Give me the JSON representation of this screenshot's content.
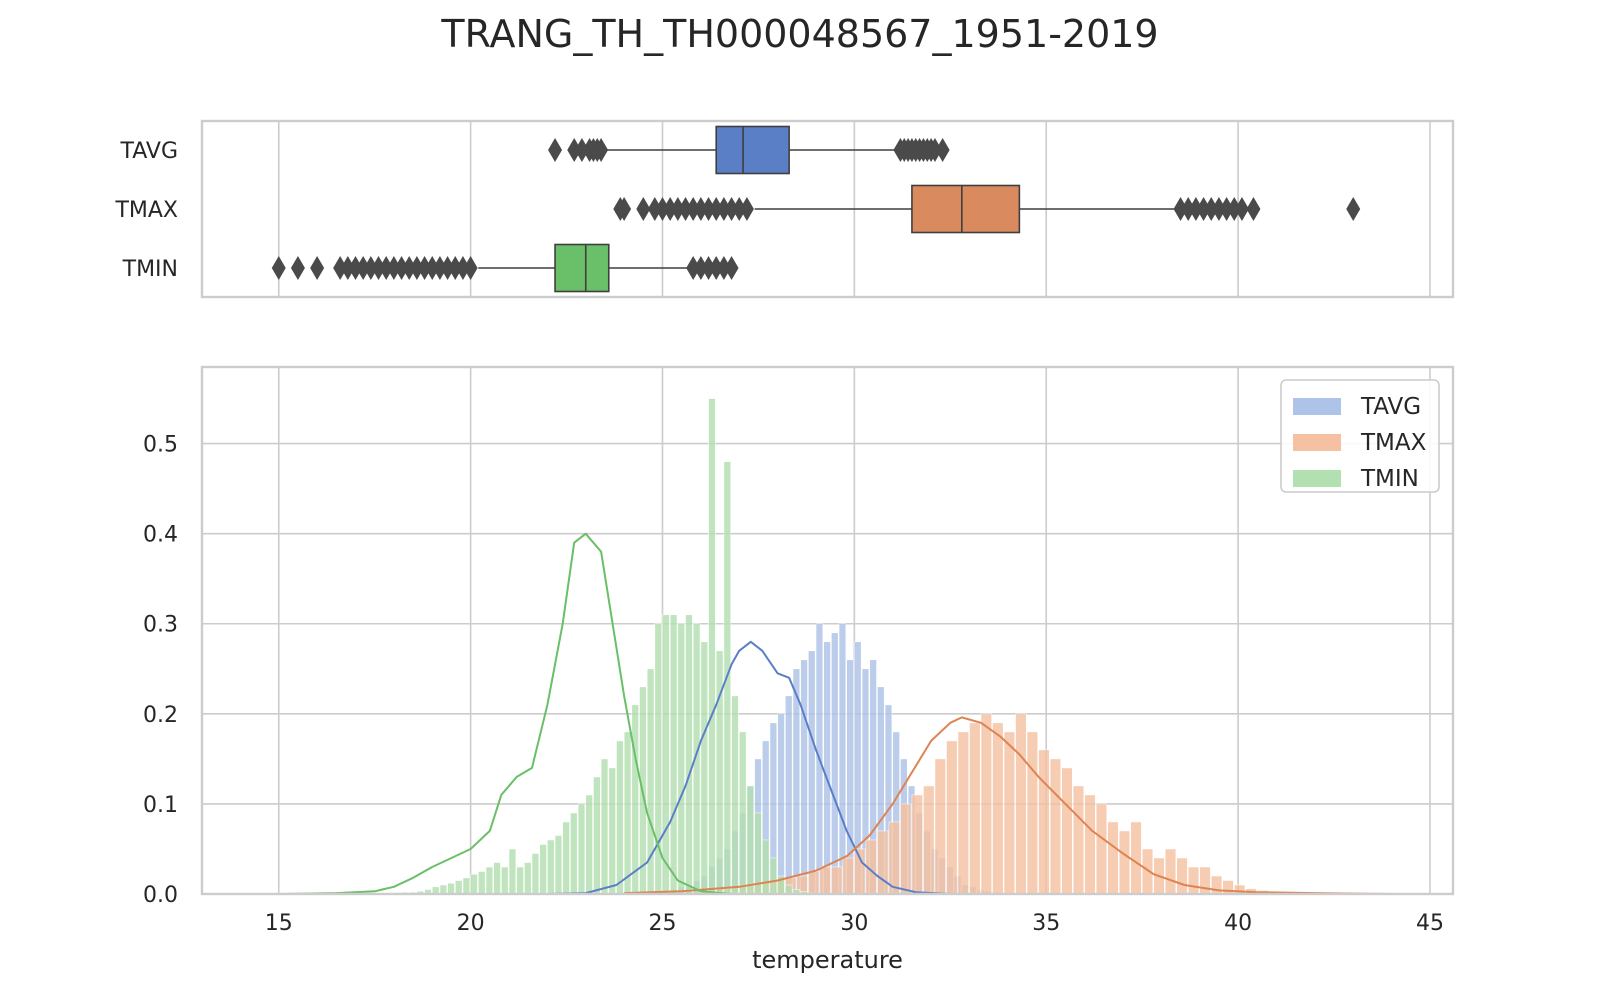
{
  "title": "TRANG_TH_TH000048567_1951-2019",
  "chart_data": [
    {
      "type": "boxplot",
      "orientation": "horizontal",
      "categories": [
        "TAVG",
        "TMAX",
        "TMIN"
      ],
      "xlim": [
        13,
        45.6
      ],
      "xticks": [
        15,
        20,
        25,
        30,
        35,
        40,
        45
      ],
      "grid": true,
      "boxes": [
        {
          "name": "TAVG",
          "color": "#5b7fc7",
          "whisker_low": 23.5,
          "q1": 26.4,
          "median": 27.1,
          "q3": 28.3,
          "whisker_high": 31.1,
          "outliers": [
            22.2,
            22.7,
            22.9,
            23.1,
            23.2,
            23.3,
            23.4,
            31.2,
            31.3,
            31.4,
            31.5,
            31.6,
            31.7,
            31.8,
            31.9,
            32.0,
            32.1,
            32.3
          ]
        },
        {
          "name": "TMAX",
          "color": "#d98b5f",
          "whisker_low": 27.4,
          "q1": 31.5,
          "median": 32.8,
          "q3": 34.3,
          "whisker_high": 38.4,
          "outliers": [
            23.9,
            24.0,
            24.5,
            24.8,
            25.0,
            25.2,
            25.4,
            25.6,
            25.8,
            26.0,
            26.2,
            26.4,
            26.6,
            26.8,
            27.0,
            27.2,
            38.5,
            38.7,
            38.9,
            39.1,
            39.3,
            39.5,
            39.7,
            39.9,
            40.1,
            40.4,
            43.0
          ]
        },
        {
          "name": "TMIN",
          "color": "#6abf69",
          "whisker_low": 20.2,
          "q1": 22.2,
          "median": 23.0,
          "q3": 23.6,
          "whisker_high": 25.7,
          "outliers": [
            15.0,
            15.5,
            16.0,
            16.6,
            16.8,
            17.0,
            17.2,
            17.4,
            17.6,
            17.8,
            18.0,
            18.2,
            18.4,
            18.6,
            18.8,
            19.0,
            19.2,
            19.4,
            19.6,
            19.8,
            20.0,
            25.8,
            26.0,
            26.2,
            26.4,
            26.6,
            26.8
          ]
        }
      ]
    },
    {
      "type": "histogram_kde",
      "xlabel": "temperature",
      "ylabel": "",
      "xlim": [
        13,
        45.6
      ],
      "ylim": [
        0,
        0.585
      ],
      "xticks": [
        15,
        20,
        25,
        30,
        35,
        40,
        45
      ],
      "yticks": [
        0.0,
        0.1,
        0.2,
        0.3,
        0.4,
        0.5
      ],
      "yticklabels": [
        "0.0",
        "0.1",
        "0.2",
        "0.3",
        "0.4",
        "0.5"
      ],
      "grid": true,
      "legend": {
        "position": "top-right",
        "entries": [
          "TAVG",
          "TMAX",
          "TMIN"
        ]
      },
      "series": [
        {
          "name": "TAVG",
          "color": "#5b7fc7",
          "fill": "#aec3e8",
          "bins": {
            "start": 22.0,
            "width": 0.2,
            "density": [
              0,
              0,
              0,
              0,
              0,
              0,
              0,
              0,
              0,
              0,
              0,
              0,
              0,
              0.001,
              0.002,
              0.003,
              0.005,
              0.008,
              0.01,
              0.015,
              0.02,
              0.03,
              0.04,
              0.05,
              0.07,
              0.09,
              0.12,
              0.15,
              0.17,
              0.19,
              0.2,
              0.22,
              0.25,
              0.26,
              0.27,
              0.3,
              0.28,
              0.29,
              0.3,
              0.26,
              0.28,
              0.25,
              0.26,
              0.23,
              0.21,
              0.18,
              0.15,
              0.12,
              0.09,
              0.07,
              0.05,
              0.04,
              0.03,
              0.02,
              0.01,
              0.008,
              0.005,
              0.003,
              0.002,
              0.001
            ]
          },
          "kde": {
            "x": [
              22.0,
              23.0,
              23.8,
              24.6,
              25.2,
              25.6,
              26.0,
              26.4,
              26.8,
              27.0,
              27.3,
              27.6,
              28.0,
              28.3,
              28.6,
              29.0,
              29.4,
              29.8,
              30.2,
              30.6,
              31.0,
              31.6,
              32.5
            ],
            "y": [
              0,
              0.001,
              0.01,
              0.035,
              0.08,
              0.12,
              0.17,
              0.21,
              0.255,
              0.27,
              0.28,
              0.27,
              0.245,
              0.24,
              0.21,
              0.16,
              0.115,
              0.07,
              0.035,
              0.02,
              0.008,
              0.002,
              0
            ]
          }
        },
        {
          "name": "TMAX",
          "color": "#dd8452",
          "fill": "#f5c1a2",
          "bins": {
            "start": 24.0,
            "width": 0.3,
            "density": [
              0.001,
              0.001,
              0.002,
              0.002,
              0.003,
              0.004,
              0.005,
              0.006,
              0.007,
              0.008,
              0.01,
              0.012,
              0.014,
              0.016,
              0.018,
              0.02,
              0.025,
              0.03,
              0.03,
              0.04,
              0.05,
              0.06,
              0.07,
              0.08,
              0.1,
              0.11,
              0.12,
              0.15,
              0.17,
              0.18,
              0.19,
              0.2,
              0.19,
              0.18,
              0.2,
              0.18,
              0.16,
              0.15,
              0.14,
              0.12,
              0.11,
              0.1,
              0.08,
              0.07,
              0.08,
              0.05,
              0.04,
              0.05,
              0.04,
              0.03,
              0.03,
              0.02,
              0.015,
              0.01,
              0.006,
              0.004,
              0.003,
              0.002,
              0.001,
              0.001
            ]
          },
          "kde": {
            "x": [
              24.0,
              25.5,
              27.0,
              28.0,
              29.0,
              29.8,
              30.4,
              31.0,
              31.5,
              32.0,
              32.5,
              32.8,
              33.3,
              33.8,
              34.3,
              34.8,
              35.5,
              36.2,
              37.0,
              37.8,
              38.6,
              39.5,
              40.5,
              42.0,
              44.0
            ],
            "y": [
              0.001,
              0.003,
              0.008,
              0.015,
              0.026,
              0.042,
              0.065,
              0.1,
              0.135,
              0.17,
              0.19,
              0.196,
              0.19,
              0.175,
              0.155,
              0.13,
              0.1,
              0.07,
              0.045,
              0.022,
              0.01,
              0.004,
              0.002,
              0.001,
              0
            ]
          }
        },
        {
          "name": "TMIN",
          "color": "#6abf69",
          "fill": "#b3e0b0",
          "bins": {
            "start": 15.0,
            "width": 0.2,
            "density": [
              0.001,
              0.001,
              0.001,
              0.001,
              0.001,
              0.001,
              0.001,
              0.001,
              0.001,
              0.001,
              0.001,
              0.001,
              0.001,
              0.001,
              0.001,
              0.001,
              0.002,
              0.002,
              0.003,
              0.005,
              0.008,
              0.01,
              0.012,
              0.015,
              0.018,
              0.022,
              0.025,
              0.03,
              0.035,
              0.03,
              0.05,
              0.03,
              0.035,
              0.045,
              0.055,
              0.06,
              0.065,
              0.08,
              0.09,
              0.1,
              0.11,
              0.13,
              0.15,
              0.14,
              0.17,
              0.18,
              0.21,
              0.23,
              0.25,
              0.3,
              0.31,
              0.31,
              0.3,
              0.31,
              0.3,
              0.28,
              0.55,
              0.27,
              0.48,
              0.22,
              0.18,
              0.12,
              0.09,
              0.06,
              0.04,
              0.02,
              0.01,
              0.005,
              0.003,
              0.001
            ]
          },
          "kde": {
            "x": [
              15.0,
              16.5,
              17.5,
              18.0,
              18.5,
              19.0,
              19.5,
              20.0,
              20.5,
              20.8,
              21.2,
              21.6,
              22.0,
              22.4,
              22.7,
              23.0,
              23.4,
              23.7,
              24.0,
              24.3,
              24.6,
              25.0,
              25.4,
              26.0,
              26.8
            ],
            "y": [
              0,
              0.001,
              0.003,
              0.008,
              0.018,
              0.03,
              0.04,
              0.05,
              0.07,
              0.11,
              0.13,
              0.14,
              0.21,
              0.3,
              0.39,
              0.4,
              0.38,
              0.3,
              0.22,
              0.15,
              0.09,
              0.04,
              0.015,
              0.003,
              0
            ]
          }
        }
      ]
    }
  ]
}
